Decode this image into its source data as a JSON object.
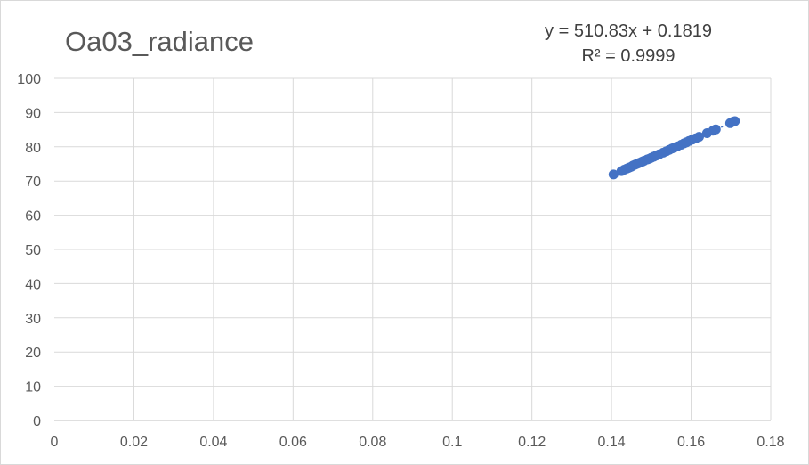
{
  "chart_data": {
    "type": "scatter",
    "title": "Oa03_radiance",
    "xlabel": "",
    "ylabel": "",
    "xlim": [
      0,
      0.18
    ],
    "ylim": [
      0,
      100
    ],
    "x_ticks": [
      "0",
      "0.02",
      "0.04",
      "0.06",
      "0.08",
      "0.1",
      "0.12",
      "0.14",
      "0.16",
      "0.18"
    ],
    "y_ticks": [
      "0",
      "10",
      "20",
      "30",
      "40",
      "50",
      "60",
      "70",
      "80",
      "90",
      "100"
    ],
    "grid": true,
    "legend": "none",
    "marker_color": "#4472c4",
    "trendline": {
      "type": "linear",
      "slope": 510.83,
      "intercept": 0.1819,
      "equation_label": "y = 510.83x + 0.1819",
      "r2_label": "R² = 0.9999",
      "style": "dotted"
    },
    "series": [
      {
        "points": [
          [
            0.1405,
            71.9
          ],
          [
            0.1425,
            72.9
          ],
          [
            0.1432,
            73.3
          ],
          [
            0.1438,
            73.6
          ],
          [
            0.1442,
            73.8
          ],
          [
            0.1446,
            74.0
          ],
          [
            0.145,
            74.2
          ],
          [
            0.1454,
            74.5
          ],
          [
            0.1458,
            74.7
          ],
          [
            0.1462,
            74.9
          ],
          [
            0.1466,
            75.1
          ],
          [
            0.147,
            75.3
          ],
          [
            0.1474,
            75.5
          ],
          [
            0.1478,
            75.7
          ],
          [
            0.1482,
            75.9
          ],
          [
            0.149,
            76.3
          ],
          [
            0.1495,
            76.5
          ],
          [
            0.15,
            76.8
          ],
          [
            0.1506,
            77.1
          ],
          [
            0.1512,
            77.4
          ],
          [
            0.152,
            77.8
          ],
          [
            0.153,
            78.3
          ],
          [
            0.1538,
            78.7
          ],
          [
            0.1545,
            79.1
          ],
          [
            0.1552,
            79.5
          ],
          [
            0.1558,
            79.8
          ],
          [
            0.1565,
            80.1
          ],
          [
            0.1575,
            80.6
          ],
          [
            0.1582,
            81.0
          ],
          [
            0.1588,
            81.3
          ],
          [
            0.1595,
            81.7
          ],
          [
            0.1603,
            82.1
          ],
          [
            0.1612,
            82.5
          ],
          [
            0.162,
            82.9
          ],
          [
            0.164,
            84.0
          ],
          [
            0.1655,
            84.7
          ],
          [
            0.1662,
            85.1
          ],
          [
            0.1698,
            86.9
          ],
          [
            0.1705,
            87.3
          ],
          [
            0.171,
            87.5
          ]
        ]
      }
    ]
  }
}
